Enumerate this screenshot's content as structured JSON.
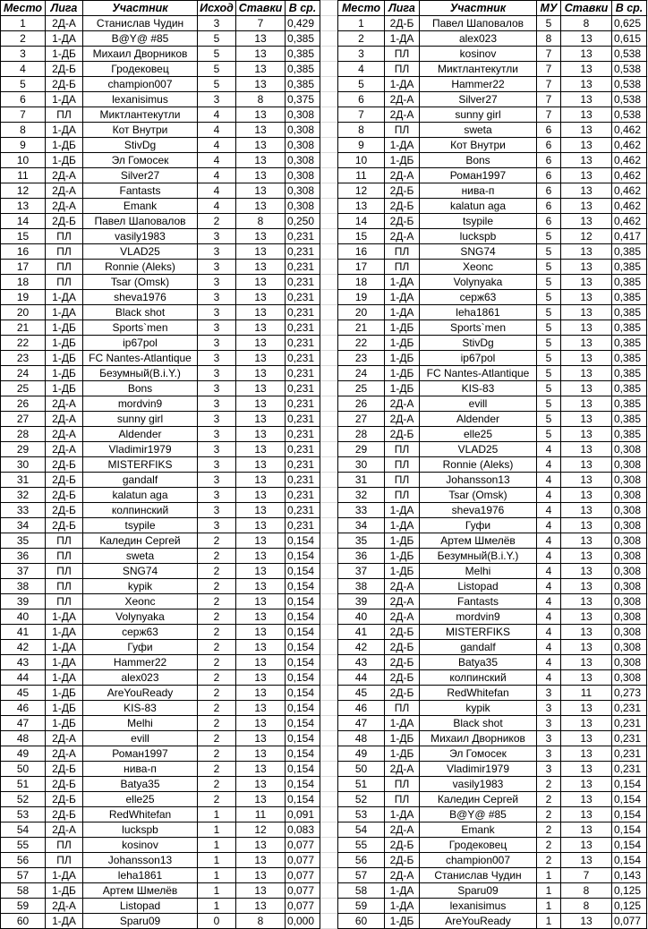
{
  "left_table": {
    "headers": [
      "Место",
      "Лига",
      "Участник",
      "Исход",
      "Ставки",
      "В ср."
    ],
    "rows": [
      [
        "1",
        "2Д-А",
        "Станислав Чудин",
        "3",
        "7",
        "0,429"
      ],
      [
        "2",
        "1-ДА",
        "B@Y@ #85",
        "5",
        "13",
        "0,385"
      ],
      [
        "3",
        "1-ДБ",
        "Михаил Дворников",
        "5",
        "13",
        "0,385"
      ],
      [
        "4",
        "2Д-Б",
        "Гродековец",
        "5",
        "13",
        "0,385"
      ],
      [
        "5",
        "2Д-Б",
        "champion007",
        "5",
        "13",
        "0,385"
      ],
      [
        "6",
        "1-ДА",
        "lexanisimus",
        "3",
        "8",
        "0,375"
      ],
      [
        "7",
        "ПЛ",
        "Миктлантекутли",
        "4",
        "13",
        "0,308"
      ],
      [
        "8",
        "1-ДА",
        "Кот Внутри",
        "4",
        "13",
        "0,308"
      ],
      [
        "9",
        "1-ДБ",
        "StivDg",
        "4",
        "13",
        "0,308"
      ],
      [
        "10",
        "1-ДБ",
        "Эл Гомосек",
        "4",
        "13",
        "0,308"
      ],
      [
        "11",
        "2Д-А",
        "Silver27",
        "4",
        "13",
        "0,308"
      ],
      [
        "12",
        "2Д-А",
        "Fantasts",
        "4",
        "13",
        "0,308"
      ],
      [
        "13",
        "2Д-А",
        "Emank",
        "4",
        "13",
        "0,308"
      ],
      [
        "14",
        "2Д-Б",
        "Павел Шаповалов",
        "2",
        "8",
        "0,250"
      ],
      [
        "15",
        "ПЛ",
        "vasily1983",
        "3",
        "13",
        "0,231"
      ],
      [
        "16",
        "ПЛ",
        "VLAD25",
        "3",
        "13",
        "0,231"
      ],
      [
        "17",
        "ПЛ",
        "Ronnie (Aleks)",
        "3",
        "13",
        "0,231"
      ],
      [
        "18",
        "ПЛ",
        "Tsar (Omsk)",
        "3",
        "13",
        "0,231"
      ],
      [
        "19",
        "1-ДА",
        "sheva1976",
        "3",
        "13",
        "0,231"
      ],
      [
        "20",
        "1-ДА",
        "Black shot",
        "3",
        "13",
        "0,231"
      ],
      [
        "21",
        "1-ДБ",
        "Sports`men",
        "3",
        "13",
        "0,231"
      ],
      [
        "22",
        "1-ДБ",
        "ip67pol",
        "3",
        "13",
        "0,231"
      ],
      [
        "23",
        "1-ДБ",
        "FC Nantes-Atlantique",
        "3",
        "13",
        "0,231"
      ],
      [
        "24",
        "1-ДБ",
        "Безумный(B.i.Y.)",
        "3",
        "13",
        "0,231"
      ],
      [
        "25",
        "1-ДБ",
        "Bons",
        "3",
        "13",
        "0,231"
      ],
      [
        "26",
        "2Д-А",
        "mordvin9",
        "3",
        "13",
        "0,231"
      ],
      [
        "27",
        "2Д-А",
        "sunny girl",
        "3",
        "13",
        "0,231"
      ],
      [
        "28",
        "2Д-А",
        "Aldender",
        "3",
        "13",
        "0,231"
      ],
      [
        "29",
        "2Д-А",
        "Vladimir1979",
        "3",
        "13",
        "0,231"
      ],
      [
        "30",
        "2Д-Б",
        "MISTERFIKS",
        "3",
        "13",
        "0,231"
      ],
      [
        "31",
        "2Д-Б",
        "gandalf",
        "3",
        "13",
        "0,231"
      ],
      [
        "32",
        "2Д-Б",
        "kalatun aga",
        "3",
        "13",
        "0,231"
      ],
      [
        "33",
        "2Д-Б",
        "колпинский",
        "3",
        "13",
        "0,231"
      ],
      [
        "34",
        "2Д-Б",
        "tsypile",
        "3",
        "13",
        "0,231"
      ],
      [
        "35",
        "ПЛ",
        "Каледин Сергей",
        "2",
        "13",
        "0,154"
      ],
      [
        "36",
        "ПЛ",
        "sweta",
        "2",
        "13",
        "0,154"
      ],
      [
        "37",
        "ПЛ",
        "SNG74",
        "2",
        "13",
        "0,154"
      ],
      [
        "38",
        "ПЛ",
        "kypik",
        "2",
        "13",
        "0,154"
      ],
      [
        "39",
        "ПЛ",
        "Xeonc",
        "2",
        "13",
        "0,154"
      ],
      [
        "40",
        "1-ДА",
        "Volynyaka",
        "2",
        "13",
        "0,154"
      ],
      [
        "41",
        "1-ДА",
        "серж63",
        "2",
        "13",
        "0,154"
      ],
      [
        "42",
        "1-ДА",
        "Гуфи",
        "2",
        "13",
        "0,154"
      ],
      [
        "43",
        "1-ДА",
        "Hammer22",
        "2",
        "13",
        "0,154"
      ],
      [
        "44",
        "1-ДА",
        "alex023",
        "2",
        "13",
        "0,154"
      ],
      [
        "45",
        "1-ДБ",
        "AreYouReady",
        "2",
        "13",
        "0,154"
      ],
      [
        "46",
        "1-ДБ",
        "KIS-83",
        "2",
        "13",
        "0,154"
      ],
      [
        "47",
        "1-ДБ",
        "Melhi",
        "2",
        "13",
        "0,154"
      ],
      [
        "48",
        "2Д-А",
        "evill",
        "2",
        "13",
        "0,154"
      ],
      [
        "49",
        "2Д-А",
        "Роман1997",
        "2",
        "13",
        "0,154"
      ],
      [
        "50",
        "2Д-Б",
        "нива-п",
        "2",
        "13",
        "0,154"
      ],
      [
        "51",
        "2Д-Б",
        "Batya35",
        "2",
        "13",
        "0,154"
      ],
      [
        "52",
        "2Д-Б",
        "elle25",
        "2",
        "13",
        "0,154"
      ],
      [
        "53",
        "2Д-Б",
        "RedWhitefan",
        "1",
        "11",
        "0,091"
      ],
      [
        "54",
        "2Д-А",
        "luckspb",
        "1",
        "12",
        "0,083"
      ],
      [
        "55",
        "ПЛ",
        "kosinov",
        "1",
        "13",
        "0,077"
      ],
      [
        "56",
        "ПЛ",
        "Johansson13",
        "1",
        "13",
        "0,077"
      ],
      [
        "57",
        "1-ДА",
        "leha1861",
        "1",
        "13",
        "0,077"
      ],
      [
        "58",
        "1-ДБ",
        "Артем Шмелёв",
        "1",
        "13",
        "0,077"
      ],
      [
        "59",
        "2Д-А",
        "Listopad",
        "1",
        "13",
        "0,077"
      ],
      [
        "60",
        "1-ДА",
        "Sparu09",
        "0",
        "8",
        "0,000"
      ]
    ]
  },
  "right_table": {
    "headers": [
      "Место",
      "Лига",
      "Участник",
      "МУ",
      "Ставки",
      "В ср."
    ],
    "rows": [
      [
        "1",
        "2Д-Б",
        "Павел Шаповалов",
        "5",
        "8",
        "0,625"
      ],
      [
        "2",
        "1-ДА",
        "alex023",
        "8",
        "13",
        "0,615"
      ],
      [
        "3",
        "ПЛ",
        "kosinov",
        "7",
        "13",
        "0,538"
      ],
      [
        "4",
        "ПЛ",
        "Миктлантекутли",
        "7",
        "13",
        "0,538"
      ],
      [
        "5",
        "1-ДА",
        "Hammer22",
        "7",
        "13",
        "0,538"
      ],
      [
        "6",
        "2Д-А",
        "Silver27",
        "7",
        "13",
        "0,538"
      ],
      [
        "7",
        "2Д-А",
        "sunny girl",
        "7",
        "13",
        "0,538"
      ],
      [
        "8",
        "ПЛ",
        "sweta",
        "6",
        "13",
        "0,462"
      ],
      [
        "9",
        "1-ДА",
        "Кот Внутри",
        "6",
        "13",
        "0,462"
      ],
      [
        "10",
        "1-ДБ",
        "Bons",
        "6",
        "13",
        "0,462"
      ],
      [
        "11",
        "2Д-А",
        "Роман1997",
        "6",
        "13",
        "0,462"
      ],
      [
        "12",
        "2Д-Б",
        "нива-п",
        "6",
        "13",
        "0,462"
      ],
      [
        "13",
        "2Д-Б",
        "kalatun aga",
        "6",
        "13",
        "0,462"
      ],
      [
        "14",
        "2Д-Б",
        "tsypile",
        "6",
        "13",
        "0,462"
      ],
      [
        "15",
        "2Д-А",
        "luckspb",
        "5",
        "12",
        "0,417"
      ],
      [
        "16",
        "ПЛ",
        "SNG74",
        "5",
        "13",
        "0,385"
      ],
      [
        "17",
        "ПЛ",
        "Xeonc",
        "5",
        "13",
        "0,385"
      ],
      [
        "18",
        "1-ДА",
        "Volynyaka",
        "5",
        "13",
        "0,385"
      ],
      [
        "19",
        "1-ДА",
        "серж63",
        "5",
        "13",
        "0,385"
      ],
      [
        "20",
        "1-ДА",
        "leha1861",
        "5",
        "13",
        "0,385"
      ],
      [
        "21",
        "1-ДБ",
        "Sports`men",
        "5",
        "13",
        "0,385"
      ],
      [
        "22",
        "1-ДБ",
        "StivDg",
        "5",
        "13",
        "0,385"
      ],
      [
        "23",
        "1-ДБ",
        "ip67pol",
        "5",
        "13",
        "0,385"
      ],
      [
        "24",
        "1-ДБ",
        "FC Nantes-Atlantique",
        "5",
        "13",
        "0,385"
      ],
      [
        "25",
        "1-ДБ",
        "KIS-83",
        "5",
        "13",
        "0,385"
      ],
      [
        "26",
        "2Д-А",
        "evill",
        "5",
        "13",
        "0,385"
      ],
      [
        "27",
        "2Д-А",
        "Aldender",
        "5",
        "13",
        "0,385"
      ],
      [
        "28",
        "2Д-Б",
        "elle25",
        "5",
        "13",
        "0,385"
      ],
      [
        "29",
        "ПЛ",
        "VLAD25",
        "4",
        "13",
        "0,308"
      ],
      [
        "30",
        "ПЛ",
        "Ronnie (Aleks)",
        "4",
        "13",
        "0,308"
      ],
      [
        "31",
        "ПЛ",
        "Johansson13",
        "4",
        "13",
        "0,308"
      ],
      [
        "32",
        "ПЛ",
        "Tsar (Omsk)",
        "4",
        "13",
        "0,308"
      ],
      [
        "33",
        "1-ДА",
        "sheva1976",
        "4",
        "13",
        "0,308"
      ],
      [
        "34",
        "1-ДА",
        "Гуфи",
        "4",
        "13",
        "0,308"
      ],
      [
        "35",
        "1-ДБ",
        "Артем Шмелёв",
        "4",
        "13",
        "0,308"
      ],
      [
        "36",
        "1-ДБ",
        "Безумный(B.i.Y.)",
        "4",
        "13",
        "0,308"
      ],
      [
        "37",
        "1-ДБ",
        "Melhi",
        "4",
        "13",
        "0,308"
      ],
      [
        "38",
        "2Д-А",
        "Listopad",
        "4",
        "13",
        "0,308"
      ],
      [
        "39",
        "2Д-А",
        "Fantasts",
        "4",
        "13",
        "0,308"
      ],
      [
        "40",
        "2Д-А",
        "mordvin9",
        "4",
        "13",
        "0,308"
      ],
      [
        "41",
        "2Д-Б",
        "MISTERFIKS",
        "4",
        "13",
        "0,308"
      ],
      [
        "42",
        "2Д-Б",
        "gandalf",
        "4",
        "13",
        "0,308"
      ],
      [
        "43",
        "2Д-Б",
        "Batya35",
        "4",
        "13",
        "0,308"
      ],
      [
        "44",
        "2Д-Б",
        "колпинский",
        "4",
        "13",
        "0,308"
      ],
      [
        "45",
        "2Д-Б",
        "RedWhitefan",
        "3",
        "11",
        "0,273"
      ],
      [
        "46",
        "ПЛ",
        "kypik",
        "3",
        "13",
        "0,231"
      ],
      [
        "47",
        "1-ДА",
        "Black shot",
        "3",
        "13",
        "0,231"
      ],
      [
        "48",
        "1-ДБ",
        "Михаил Дворников",
        "3",
        "13",
        "0,231"
      ],
      [
        "49",
        "1-ДБ",
        "Эл Гомосек",
        "3",
        "13",
        "0,231"
      ],
      [
        "50",
        "2Д-А",
        "Vladimir1979",
        "3",
        "13",
        "0,231"
      ],
      [
        "51",
        "ПЛ",
        "vasily1983",
        "2",
        "13",
        "0,154"
      ],
      [
        "52",
        "ПЛ",
        "Каледин Сергей",
        "2",
        "13",
        "0,154"
      ],
      [
        "53",
        "1-ДА",
        "B@Y@ #85",
        "2",
        "13",
        "0,154"
      ],
      [
        "54",
        "2Д-А",
        "Emank",
        "2",
        "13",
        "0,154"
      ],
      [
        "55",
        "2Д-Б",
        "Гродековец",
        "2",
        "13",
        "0,154"
      ],
      [
        "56",
        "2Д-Б",
        "champion007",
        "2",
        "13",
        "0,154"
      ],
      [
        "57",
        "2Д-А",
        "Станислав Чудин",
        "1",
        "7",
        "0,143"
      ],
      [
        "58",
        "1-ДА",
        "Sparu09",
        "1",
        "8",
        "0,125"
      ],
      [
        "59",
        "1-ДА",
        "lexanisimus",
        "1",
        "8",
        "0,125"
      ],
      [
        "60",
        "1-ДБ",
        "AreYouReady",
        "1",
        "13",
        "0,077"
      ]
    ]
  }
}
